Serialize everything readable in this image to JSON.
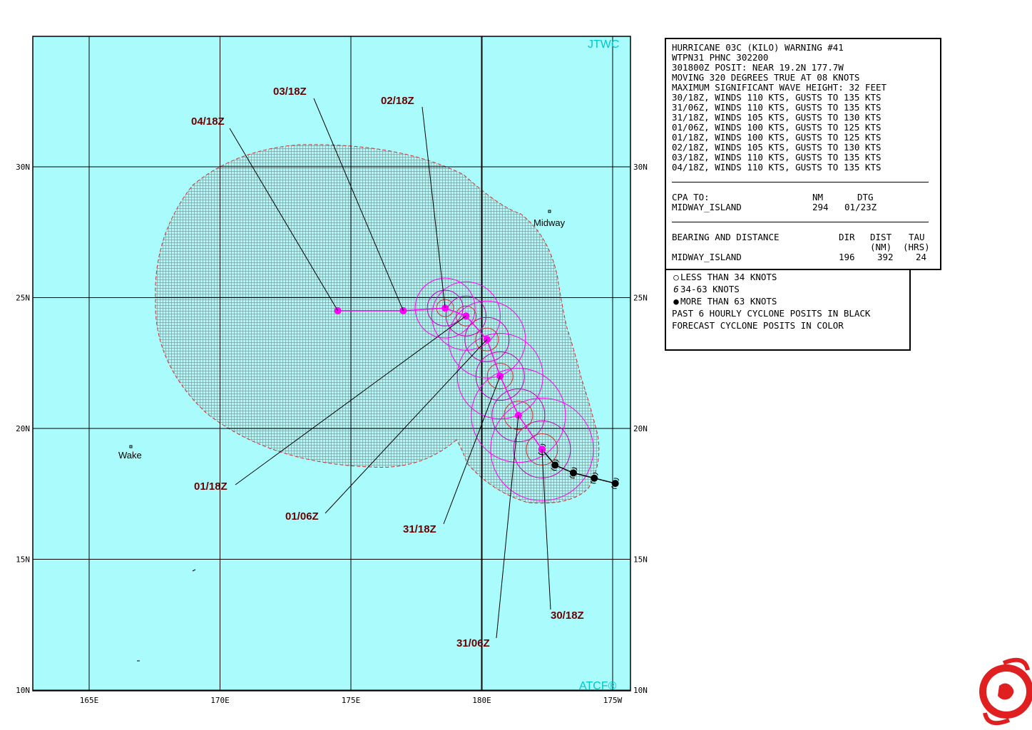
{
  "map": {
    "credit_top": "JTWC",
    "credit_bottom": "ATCF®",
    "lat_labels": [
      "30N",
      "25N",
      "20N",
      "15N",
      "10N"
    ],
    "lon_labels": [
      "165E",
      "170E",
      "175E",
      "180E",
      "175W"
    ],
    "islands": [
      "Midway",
      "Wake"
    ],
    "past_positions": [
      {
        "lat": 19.2,
        "lon": 182.3
      },
      {
        "lat": 18.6,
        "lon": 182.8
      },
      {
        "lat": 18.3,
        "lon": 183.5
      },
      {
        "lat": 18.1,
        "lon": 184.3
      },
      {
        "lat": 17.9,
        "lon": 185.1
      }
    ],
    "forecast_positions": [
      {
        "label": "30/18Z",
        "lat": 19.2,
        "lon": 182.3
      },
      {
        "label": "31/06Z",
        "lat": 20.5,
        "lon": 181.4
      },
      {
        "label": "31/18Z",
        "lat": 22.0,
        "lon": 180.7
      },
      {
        "label": "01/06Z",
        "lat": 23.4,
        "lon": 180.2
      },
      {
        "label": "01/18Z",
        "lat": 24.3,
        "lon": 179.4
      },
      {
        "label": "02/18Z",
        "lat": 24.6,
        "lon": 178.6
      },
      {
        "label": "03/18Z",
        "lat": 24.5,
        "lon": 177.0
      },
      {
        "label": "04/18Z",
        "lat": 24.5,
        "lon": 174.5
      }
    ],
    "colors": {
      "ocean": "#aafcfc",
      "forecast": "#ff00ff",
      "label": "#6b0000",
      "swath": "#cc3333",
      "credit": "#00c8c8"
    }
  },
  "warning": {
    "lines": [
      "HURRICANE 03C (KILO) WARNING #41",
      "WTPN31 PHNC 302200",
      "301800Z POSIT: NEAR 19.2N 177.7W",
      "MOVING 320 DEGREES TRUE AT 08 KNOTS",
      "MAXIMUM SIGNIFICANT WAVE HEIGHT: 32 FEET",
      "30/18Z, WINDS 110 KTS, GUSTS TO 135 KTS",
      "31/06Z, WINDS 110 KTS, GUSTS TO 135 KTS",
      "31/18Z, WINDS 105 KTS, GUSTS TO 130 KTS",
      "01/06Z, WINDS 100 KTS, GUSTS TO 125 KTS",
      "01/18Z, WINDS 100 KTS, GUSTS TO 125 KTS",
      "02/18Z, WINDS 105 KTS, GUSTS TO 130 KTS",
      "03/18Z, WINDS 110 KTS, GUSTS TO 135 KTS",
      "04/18Z, WINDS 110 KTS, GUSTS TO 135 KTS"
    ],
    "cpa": {
      "heading": "CPA TO:",
      "col_nm": "NM",
      "col_dtg": "DTG",
      "name": "MIDWAY_ISLAND",
      "nm": "294",
      "dtg": "01/23Z"
    },
    "bearing": {
      "heading": "BEARING AND DISTANCE",
      "col_dir": "DIR",
      "col_dist": "DIST",
      "col_tau": "TAU",
      "unit_dist": "(NM)",
      "unit_tau": "(HRS)",
      "name": "MIDWAY_ISLAND",
      "dir": "196",
      "dist": "392",
      "tau": "24"
    }
  },
  "legend": {
    "items": [
      {
        "icon": "open-circle-icon",
        "glyph": "○",
        "text": "LESS THAN 34 KNOTS"
      },
      {
        "icon": "tropical-storm-icon",
        "glyph": "6",
        "text": "34-63 KNOTS"
      },
      {
        "icon": "hurricane-icon",
        "glyph": "●",
        "text": "MORE THAN 63 KNOTS"
      }
    ],
    "notes": [
      "PAST 6 HOURLY CYCLONE POSITS IN BLACK",
      "FORECAST CYCLONE POSITS IN COLOR"
    ]
  }
}
